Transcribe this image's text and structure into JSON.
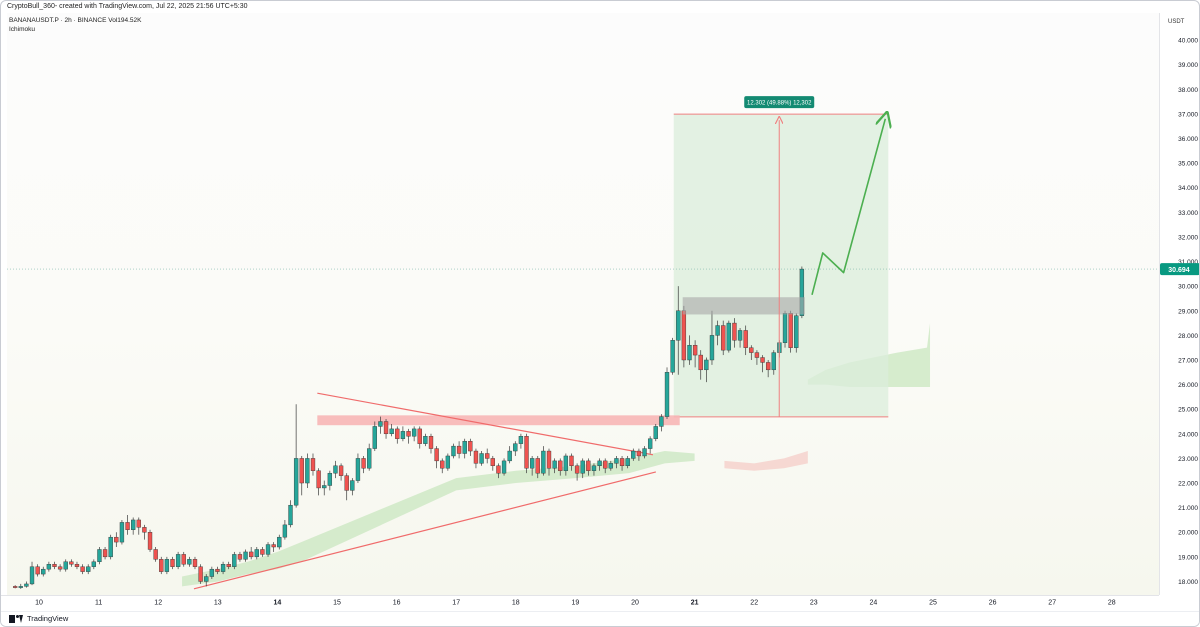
{
  "header": {
    "caption": "CryptoBull_360- created with TradingView.com, Jul 22, 2025 21:56 UTC+5:30",
    "symbol_line": "BANANAUSDT.P · 2h · BINANCE  Vol194.52K",
    "indicator": "Ichimoku"
  },
  "price_scale": {
    "currency": "USDT",
    "current_price_label": "30.694"
  },
  "footer": {
    "brand": "TradingView"
  },
  "colors": {
    "bull": "#26a69a",
    "bear": "#ef5350",
    "target_zone": "#dbeedb",
    "target_line": "#f08080",
    "resistance_zone": "#f7b6b6",
    "supply_box": "#a9a9a9",
    "projection": "#4caf50",
    "triangle": "#f06b6b",
    "cloud_green": "#cfe9c6",
    "cloud_red": "#f6d2cc",
    "current_price_bg": "#089981"
  },
  "chart_data": {
    "type": "candlestick",
    "y_range": [
      17.45,
      41.1
    ],
    "y_scale": "linear",
    "x_range": [
      9.5,
      28.9
    ],
    "x_units": "day of July 2025",
    "y_ticks": [
      "18.000",
      "19.000",
      "20.000",
      "21.000",
      "22.000",
      "23.000",
      "24.000",
      "25.000",
      "26.000",
      "27.000",
      "28.000",
      "29.000",
      "30.000",
      "31.000",
      "32.000",
      "33.000",
      "34.000",
      "35.000",
      "36.000",
      "37.000",
      "38.000",
      "39.000",
      "40.000"
    ],
    "x_ticks": [
      "10",
      "11",
      "12",
      "13",
      "14",
      "15",
      "16",
      "17",
      "18",
      "19",
      "20",
      "21",
      "22",
      "23",
      "24",
      "25",
      "26",
      "27",
      "28"
    ],
    "current_price": 30.694,
    "grid": false,
    "candles_ohlc": [
      [
        17.8,
        17.75,
        17.85,
        17.72
      ],
      [
        17.75,
        17.8,
        17.9,
        17.7
      ],
      [
        17.8,
        17.9,
        18.0,
        17.75
      ],
      [
        17.9,
        18.6,
        18.8,
        17.85
      ],
      [
        18.6,
        18.3,
        18.7,
        18.2
      ],
      [
        18.3,
        18.5,
        18.6,
        18.2
      ],
      [
        18.5,
        18.7,
        18.8,
        18.4
      ],
      [
        18.7,
        18.6,
        18.8,
        18.5
      ],
      [
        18.6,
        18.5,
        18.7,
        18.4
      ],
      [
        18.5,
        18.8,
        18.9,
        18.4
      ],
      [
        18.8,
        18.7,
        18.9,
        18.6
      ],
      [
        18.7,
        18.6,
        18.8,
        18.5
      ],
      [
        18.6,
        18.4,
        18.7,
        18.3
      ],
      [
        18.4,
        18.6,
        18.7,
        18.3
      ],
      [
        18.6,
        18.8,
        18.9,
        18.5
      ],
      [
        18.8,
        19.3,
        19.4,
        18.7
      ],
      [
        19.3,
        19.0,
        19.4,
        18.9
      ],
      [
        19.0,
        19.8,
        19.9,
        18.9
      ],
      [
        19.8,
        19.6,
        20.0,
        19.4
      ],
      [
        19.6,
        20.4,
        20.5,
        19.5
      ],
      [
        20.4,
        20.1,
        20.7,
        19.9
      ],
      [
        20.1,
        20.5,
        20.6,
        19.9
      ],
      [
        20.5,
        20.2,
        20.6,
        19.9
      ],
      [
        20.2,
        20.0,
        20.3,
        19.7
      ],
      [
        20.0,
        19.3,
        20.1,
        19.2
      ],
      [
        19.3,
        18.9,
        19.4,
        18.8
      ],
      [
        18.9,
        18.4,
        19.0,
        18.3
      ],
      [
        18.4,
        18.9,
        19.0,
        18.3
      ],
      [
        18.9,
        18.6,
        19.0,
        18.5
      ],
      [
        18.6,
        19.1,
        19.2,
        18.5
      ],
      [
        19.1,
        18.7,
        19.2,
        18.6
      ],
      [
        18.7,
        18.9,
        19.0,
        18.6
      ],
      [
        18.9,
        18.6,
        19.0,
        18.5
      ],
      [
        18.6,
        18.0,
        18.7,
        17.9
      ],
      [
        18.0,
        18.2,
        18.3,
        17.8
      ],
      [
        18.2,
        18.5,
        18.6,
        18.1
      ],
      [
        18.5,
        18.4,
        18.6,
        18.3
      ],
      [
        18.4,
        18.7,
        18.8,
        18.3
      ],
      [
        18.7,
        18.6,
        18.8,
        18.5
      ],
      [
        18.6,
        19.1,
        19.2,
        18.5
      ],
      [
        19.1,
        18.9,
        19.2,
        18.8
      ],
      [
        18.9,
        19.2,
        19.3,
        18.8
      ],
      [
        19.2,
        19.0,
        19.4,
        18.9
      ],
      [
        19.0,
        19.3,
        19.4,
        18.9
      ],
      [
        19.3,
        19.1,
        19.4,
        19.0
      ],
      [
        19.1,
        19.5,
        19.6,
        19.0
      ],
      [
        19.5,
        19.4,
        19.6,
        19.2
      ],
      [
        19.4,
        19.8,
        19.9,
        19.3
      ],
      [
        19.8,
        20.3,
        20.5,
        19.7
      ],
      [
        20.3,
        21.1,
        21.3,
        20.2
      ],
      [
        21.1,
        23.0,
        25.2,
        21.0
      ],
      [
        23.0,
        22.0,
        23.1,
        21.5
      ],
      [
        22.0,
        23.0,
        23.2,
        21.8
      ],
      [
        23.0,
        22.5,
        23.2,
        22.3
      ],
      [
        22.5,
        21.8,
        22.6,
        21.5
      ],
      [
        21.8,
        21.9,
        22.1,
        21.5
      ],
      [
        21.9,
        22.4,
        22.5,
        21.7
      ],
      [
        22.4,
        22.7,
        22.9,
        22.2
      ],
      [
        22.7,
        22.3,
        22.8,
        22.1
      ],
      [
        22.3,
        21.7,
        22.4,
        21.3
      ],
      [
        21.7,
        22.1,
        22.2,
        21.5
      ],
      [
        22.1,
        23.0,
        23.2,
        22.0
      ],
      [
        23.0,
        22.6,
        23.1,
        22.4
      ],
      [
        22.6,
        23.4,
        23.6,
        22.5
      ],
      [
        23.4,
        24.3,
        24.5,
        23.3
      ],
      [
        24.3,
        24.5,
        24.7,
        24.0
      ],
      [
        24.5,
        24.0,
        24.6,
        23.8
      ],
      [
        24.0,
        24.2,
        24.4,
        23.9
      ],
      [
        24.2,
        23.8,
        24.3,
        23.6
      ],
      [
        23.8,
        24.1,
        24.3,
        23.7
      ],
      [
        24.1,
        23.9,
        24.2,
        23.6
      ],
      [
        23.9,
        24.2,
        24.3,
        23.7
      ],
      [
        24.2,
        23.6,
        24.3,
        23.4
      ],
      [
        23.6,
        23.9,
        24.0,
        23.5
      ],
      [
        23.9,
        23.4,
        24.0,
        23.2
      ],
      [
        23.4,
        22.9,
        23.5,
        22.6
      ],
      [
        22.9,
        22.6,
        23.0,
        22.4
      ],
      [
        22.6,
        23.1,
        23.2,
        22.5
      ],
      [
        23.1,
        23.5,
        23.6,
        23.0
      ],
      [
        23.5,
        23.2,
        23.7,
        23.0
      ],
      [
        23.2,
        23.7,
        23.8,
        23.0
      ],
      [
        23.7,
        23.3,
        23.8,
        23.1
      ],
      [
        23.3,
        22.8,
        23.4,
        22.6
      ],
      [
        22.8,
        23.2,
        23.3,
        22.7
      ],
      [
        23.2,
        23.0,
        23.4,
        22.8
      ],
      [
        23.0,
        22.7,
        23.1,
        22.5
      ],
      [
        22.7,
        22.4,
        22.8,
        22.2
      ],
      [
        22.4,
        22.9,
        23.0,
        22.3
      ],
      [
        22.9,
        23.3,
        23.5,
        22.8
      ],
      [
        23.3,
        23.6,
        23.7,
        23.1
      ],
      [
        23.6,
        23.9,
        24.0,
        23.4
      ],
      [
        23.9,
        22.6,
        24.0,
        22.4
      ],
      [
        22.6,
        23.0,
        23.1,
        22.3
      ],
      [
        23.0,
        22.4,
        23.1,
        22.2
      ],
      [
        22.4,
        23.3,
        23.5,
        22.3
      ],
      [
        23.3,
        22.6,
        23.4,
        22.3
      ],
      [
        22.6,
        22.9,
        23.0,
        22.4
      ],
      [
        22.9,
        22.5,
        23.0,
        22.3
      ],
      [
        22.5,
        23.1,
        23.2,
        22.3
      ],
      [
        23.1,
        22.7,
        23.2,
        22.5
      ],
      [
        22.7,
        22.4,
        22.8,
        22.1
      ],
      [
        22.4,
        22.9,
        23.0,
        22.2
      ],
      [
        22.9,
        22.5,
        23.0,
        22.3
      ],
      [
        22.5,
        22.7,
        22.8,
        22.3
      ],
      [
        22.7,
        22.9,
        23.0,
        22.5
      ],
      [
        22.9,
        22.6,
        23.0,
        22.4
      ],
      [
        22.6,
        22.8,
        22.9,
        22.5
      ],
      [
        22.8,
        23.0,
        23.1,
        22.6
      ],
      [
        23.0,
        22.7,
        23.1,
        22.5
      ],
      [
        22.7,
        23.0,
        23.1,
        22.6
      ],
      [
        23.0,
        23.3,
        23.4,
        22.9
      ],
      [
        23.3,
        23.1,
        23.4,
        22.9
      ],
      [
        23.1,
        23.4,
        23.5,
        23.0
      ],
      [
        23.4,
        23.8,
        23.9,
        23.2
      ],
      [
        23.8,
        24.3,
        24.4,
        23.7
      ],
      [
        24.3,
        24.7,
        24.8,
        24.1
      ],
      [
        24.7,
        26.5,
        26.7,
        24.6
      ],
      [
        26.5,
        27.8,
        27.9,
        26.4
      ],
      [
        27.8,
        29.0,
        30.0,
        26.4
      ],
      [
        29.0,
        27.0,
        29.2,
        26.7
      ],
      [
        27.0,
        27.6,
        28.0,
        26.8
      ],
      [
        27.6,
        27.2,
        27.8,
        26.7
      ],
      [
        27.2,
        26.6,
        27.4,
        26.2
      ],
      [
        26.6,
        27.0,
        27.1,
        26.1
      ],
      [
        27.0,
        28.0,
        29.0,
        26.8
      ],
      [
        28.0,
        28.4,
        28.6,
        27.6
      ],
      [
        28.4,
        27.4,
        28.6,
        27.2
      ],
      [
        27.4,
        28.5,
        28.6,
        27.3
      ],
      [
        28.5,
        27.8,
        28.7,
        27.5
      ],
      [
        27.8,
        28.2,
        28.3,
        27.5
      ],
      [
        28.2,
        27.5,
        28.4,
        27.2
      ],
      [
        27.5,
        27.3,
        27.6,
        27.0
      ],
      [
        27.3,
        27.1,
        27.4,
        26.8
      ],
      [
        27.1,
        26.9,
        27.2,
        26.5
      ],
      [
        26.9,
        26.6,
        27.0,
        26.3
      ],
      [
        26.6,
        27.3,
        27.4,
        26.4
      ],
      [
        27.3,
        27.7,
        27.8,
        27.1
      ],
      [
        27.7,
        28.9,
        29.0,
        27.5
      ],
      [
        28.9,
        27.5,
        29.0,
        27.3
      ],
      [
        27.5,
        28.8,
        28.9,
        27.3
      ],
      [
        28.8,
        30.694,
        30.8,
        28.7
      ]
    ],
    "target_box": {
      "x_start": 20.65,
      "x_end": 24.25,
      "y_bottom": 24.69,
      "y_top": 36.99
    },
    "measure_label": "12.302 (49.88%) 12,302",
    "resistance_zone": {
      "x_start": 14.67,
      "x_end": 20.75,
      "y_bottom": 24.35,
      "y_top": 24.75
    },
    "supply_box": {
      "x_start": 20.8,
      "x_end": 22.85,
      "y_bottom": 28.85,
      "y_top": 29.55
    },
    "triangle_upper": [
      [
        14.67,
        25.65
      ],
      [
        20.3,
        23.15
      ]
    ],
    "triangle_lower": [
      [
        12.6,
        17.7
      ],
      [
        20.35,
        22.45
      ]
    ],
    "projection_path": [
      [
        22.97,
        29.65
      ],
      [
        23.15,
        31.35
      ],
      [
        23.5,
        30.55
      ],
      [
        24.2,
        36.8
      ]
    ],
    "ichimoku_cloud_green": [
      [
        12.4,
        17.8,
        18.2
      ],
      [
        13.0,
        18.0,
        18.5
      ],
      [
        13.5,
        18.3,
        18.8
      ],
      [
        14.0,
        18.5,
        19.2
      ],
      [
        14.4,
        18.8,
        19.6
      ],
      [
        17.0,
        21.7,
        22.2
      ],
      [
        18.0,
        22.0,
        22.5
      ],
      [
        19.0,
        22.2,
        22.7
      ],
      [
        19.9,
        22.4,
        23.0
      ],
      [
        20.5,
        22.8,
        23.3
      ],
      [
        21.0,
        22.9,
        23.2
      ]
    ],
    "ichimoku_cloud_red": [
      [
        21.5,
        22.6,
        22.9
      ],
      [
        22.0,
        22.5,
        22.8
      ],
      [
        22.5,
        22.6,
        23.0
      ],
      [
        22.9,
        22.8,
        23.3
      ]
    ],
    "ichimoku_cloud_future": [
      [
        22.9,
        26.0,
        26.2
      ],
      [
        23.2,
        26.0,
        26.6
      ],
      [
        23.6,
        25.9,
        26.9
      ],
      [
        24.0,
        25.9,
        27.1
      ],
      [
        24.4,
        25.9,
        27.3
      ],
      [
        24.9,
        25.9,
        27.5
      ],
      [
        24.95,
        25.9,
        28.5
      ]
    ]
  }
}
